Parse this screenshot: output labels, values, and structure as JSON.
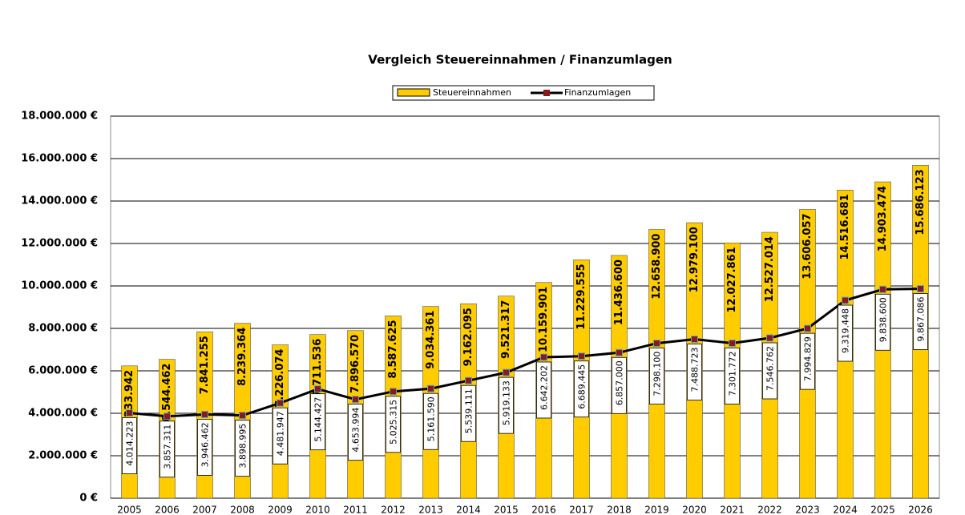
{
  "chart_data": {
    "type": "bar-line",
    "title": "Vergleich Steuereinnahmen / Finanzumlagen",
    "categories": [
      "2005",
      "2006",
      "2007",
      "2008",
      "2009",
      "2010",
      "2011",
      "2012",
      "2013",
      "2014",
      "2015",
      "2016",
      "2017",
      "2018",
      "2019",
      "2020",
      "2021",
      "2022",
      "2023",
      "2024",
      "2025",
      "2026"
    ],
    "series": [
      {
        "name": "Steuereinnahmen",
        "type": "bar",
        "color": "#ffcc00",
        "values": [
          6233942,
          6544462,
          7841255,
          8239364,
          7226074,
          7711536,
          7896570,
          8587625,
          9034361,
          9162095,
          9521317,
          10159901,
          11229555,
          11436600,
          12658900,
          12979100,
          12027861,
          12527014,
          13606057,
          14516681,
          14903474,
          15686123
        ],
        "value_labels": [
          "6.233.942",
          "6.544.462",
          "7.841.255",
          "8.239.364",
          "7.226.074",
          "7.711.536",
          "7.896.570",
          "8.587.625",
          "9.034.361",
          "9.162.095",
          "9.521.317",
          "10.159.901",
          "11.229.555",
          "11.436.600",
          "12.658.900",
          "12.979.100",
          "12.027.861",
          "12.527.014",
          "13.606.057",
          "14.516.681",
          "14.903.474",
          "15.686.123"
        ]
      },
      {
        "name": "Finanzumlagen",
        "type": "line",
        "color": "#000000",
        "marker_color": "#8b1a1a",
        "values": [
          4014223,
          3857311,
          3946462,
          3898995,
          4481947,
          5144427,
          4653994,
          5025315,
          5161590,
          5539111,
          5919133,
          6642202,
          6689445,
          6857000,
          7298100,
          7488723,
          7301772,
          7546762,
          7994829,
          9319448,
          9838600,
          9867086
        ],
        "value_labels": [
          "4.014.223",
          "3.857.311",
          "3.946.462",
          "3.898.995",
          "4.481.947",
          "5.144.427",
          "4.653.994",
          "5.025.315",
          "5.161.590",
          "5.539.111",
          "5.919.133",
          "6.642.202",
          "6.689.445",
          "6.857.000",
          "7.298.100",
          "7.488.723",
          "7.301.772",
          "7.546.762",
          "7.994.829",
          "9.319.448",
          "9.838.600",
          "9.867.086"
        ]
      }
    ],
    "ylim": [
      0,
      18000000
    ],
    "yticks": [
      {
        "value": 0,
        "label": "0 €"
      },
      {
        "value": 2000000,
        "label": "2.000.000 €"
      },
      {
        "value": 4000000,
        "label": "4.000.000 €"
      },
      {
        "value": 6000000,
        "label": "6.000.000 €"
      },
      {
        "value": 8000000,
        "label": "8.000.000 €"
      },
      {
        "value": 10000000,
        "label": "10.000.000 €"
      },
      {
        "value": 12000000,
        "label": "12.000.000 €"
      },
      {
        "value": 14000000,
        "label": "14.000.000 €"
      },
      {
        "value": 16000000,
        "label": "16.000.000 €"
      },
      {
        "value": 18000000,
        "label": "18.000.000 €"
      }
    ],
    "grid": true,
    "legend": "top"
  }
}
